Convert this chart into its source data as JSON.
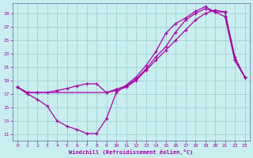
{
  "xlabel": "Windchill (Refroidissement éolien,°C)",
  "bg_color": "#c8eef0",
  "line_color": "#aa00aa",
  "grid_color": "#99cccc",
  "spine_color": "#666699",
  "xlim": [
    -0.5,
    23.5
  ],
  "ylim": [
    10,
    30.5
  ],
  "yticks": [
    11,
    13,
    15,
    17,
    19,
    21,
    23,
    25,
    27,
    29
  ],
  "xticks": [
    0,
    1,
    2,
    3,
    4,
    5,
    6,
    7,
    8,
    9,
    10,
    11,
    12,
    13,
    14,
    15,
    16,
    17,
    18,
    19,
    20,
    21,
    22,
    23
  ],
  "curve1_x": [
    0,
    1,
    2,
    3,
    4,
    5,
    6,
    7,
    8,
    9,
    10,
    11,
    12,
    13,
    14,
    15,
    16,
    17,
    18,
    19,
    20,
    21,
    22,
    23
  ],
  "curve1_y": [
    18.0,
    17.0,
    16.2,
    15.2,
    13.0,
    12.2,
    11.7,
    11.1,
    11.1,
    13.3,
    17.2,
    18.3,
    19.5,
    21.2,
    23.3,
    26.0,
    27.5,
    28.3,
    29.3,
    30.0,
    29.2,
    29.2,
    22.5,
    19.5
  ],
  "curve2_x": [
    0,
    1,
    2,
    9,
    10,
    11,
    12,
    13,
    14,
    15,
    16,
    17,
    18,
    19,
    20,
    21,
    22,
    23
  ],
  "curve2_y": [
    18.0,
    17.2,
    17.2,
    17.2,
    17.7,
    18.2,
    19.2,
    20.7,
    22.5,
    24.0,
    26.2,
    28.0,
    29.0,
    29.7,
    29.2,
    28.5,
    22.0,
    19.5
  ],
  "curve3_x": [
    0,
    1,
    2,
    3,
    4,
    5,
    6,
    7,
    8,
    9,
    10,
    11,
    12,
    13,
    14,
    15,
    16,
    17,
    18,
    19,
    20,
    21,
    22,
    23
  ],
  "curve3_y": [
    18.0,
    17.2,
    17.2,
    17.2,
    17.5,
    17.8,
    18.2,
    18.5,
    18.5,
    17.2,
    17.5,
    18.0,
    19.0,
    20.5,
    22.0,
    23.5,
    25.0,
    26.5,
    28.0,
    29.0,
    29.5,
    29.2,
    22.0,
    19.5
  ]
}
